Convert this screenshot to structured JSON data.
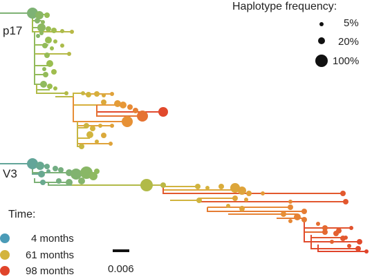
{
  "panels": [
    {
      "label": "p17"
    },
    {
      "label": "V3"
    }
  ],
  "frequency_legend": {
    "title": "Haplotype frequency:",
    "items": [
      {
        "label": "5%",
        "value": 0.05
      },
      {
        "label": "20%",
        "value": 0.2
      },
      {
        "label": "100%",
        "value": 1.0
      }
    ]
  },
  "time_legend": {
    "title": "Time:",
    "items": [
      {
        "label": "4 months",
        "color": "#4a9bb7"
      },
      {
        "label": "61 months",
        "color": "#d3b43d"
      },
      {
        "label": "98 months",
        "color": "#e0442b"
      }
    ]
  },
  "scale_bar": {
    "label": "0.006",
    "value": 0.006
  },
  "colors": {
    "early": "#4a9bb7",
    "mid": "#d3b43d",
    "late": "#e0442b",
    "text": "#222222"
  }
}
